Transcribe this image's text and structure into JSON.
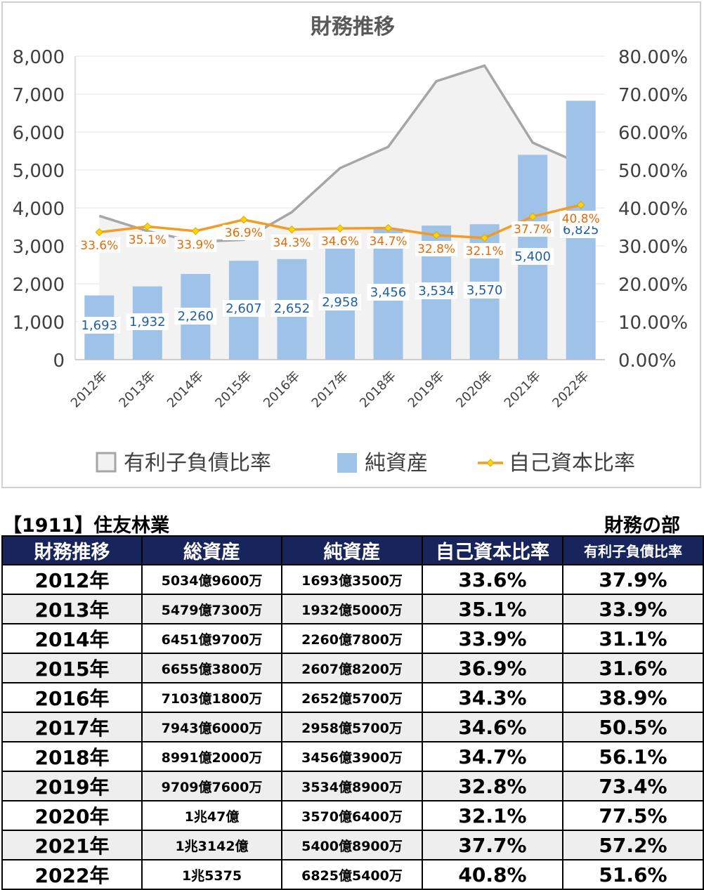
{
  "chart_data": {
    "type": "bar+line+area",
    "title": "財務推移",
    "categories": [
      "2012年",
      "2013年",
      "2014年",
      "2015年",
      "2016年",
      "2017年",
      "2018年",
      "2019年",
      "2020年",
      "2021年",
      "2022年"
    ],
    "left_axis": {
      "ylim": [
        0,
        8000
      ],
      "ticks": [
        "0",
        "1,000",
        "2,000",
        "3,000",
        "4,000",
        "5,000",
        "6,000",
        "7,000",
        "8,000"
      ]
    },
    "right_axis": {
      "ylim": [
        0,
        80
      ],
      "ticks": [
        "0.00%",
        "10.00%",
        "20.00%",
        "30.00%",
        "40.00%",
        "50.00%",
        "60.00%",
        "70.00%",
        "80.00%"
      ]
    },
    "series": [
      {
        "name": "有利子負債比率",
        "type": "area",
        "axis": "right",
        "values": [
          37.9,
          33.9,
          31.1,
          31.6,
          38.9,
          50.5,
          56.1,
          73.4,
          77.5,
          57.2,
          51.6
        ],
        "color": "#a6a6a6"
      },
      {
        "name": "純資産",
        "type": "bar",
        "axis": "left",
        "values": [
          1693,
          1932,
          2260,
          2607,
          2652,
          2958,
          3456,
          3534,
          3570,
          5400,
          6825
        ],
        "labels": [
          "1,693",
          "1,932",
          "2,260",
          "2,607",
          "2,652",
          "2,958",
          "3,456",
          "3,534",
          "3,570",
          "5,400",
          "6,825"
        ],
        "color": "#9fc3e8"
      },
      {
        "name": "自己資本比率",
        "type": "line",
        "axis": "right",
        "values": [
          33.6,
          35.1,
          33.9,
          36.9,
          34.3,
          34.6,
          34.7,
          32.8,
          32.1,
          37.7,
          40.8
        ],
        "labels": [
          "33.6%",
          "35.1%",
          "33.9%",
          "36.9%",
          "34.3%",
          "34.6%",
          "34.7%",
          "32.8%",
          "32.1%",
          "37.7%",
          "40.8%"
        ],
        "color": "#f59a23"
      }
    ],
    "legend": "bottom",
    "grid": true
  },
  "company": "【1911】住友林業",
  "section": "財務の部",
  "table": {
    "headers": [
      "財務推移",
      "総資産",
      "純資産",
      "自己資本比率",
      "有利子負債比率"
    ],
    "rows": [
      [
        "2012年",
        "5034億9600万",
        "1693億3500万",
        "33.6%",
        "37.9%"
      ],
      [
        "2013年",
        "5479億7300万",
        "1932億5000万",
        "35.1%",
        "33.9%"
      ],
      [
        "2014年",
        "6451億9700万",
        "2260億7800万",
        "33.9%",
        "31.1%"
      ],
      [
        "2015年",
        "6655億3800万",
        "2607億8200万",
        "36.9%",
        "31.6%"
      ],
      [
        "2016年",
        "7103億1800万",
        "2652億5700万",
        "34.3%",
        "38.9%"
      ],
      [
        "2017年",
        "7943億6000万",
        "2958億5700万",
        "34.6%",
        "50.5%"
      ],
      [
        "2018年",
        "8991億2000万",
        "3456億3900万",
        "34.7%",
        "56.1%"
      ],
      [
        "2019年",
        "9709億7600万",
        "3534億8900万",
        "32.8%",
        "73.4%"
      ],
      [
        "2020年",
        "1兆47億",
        "3570億6400万",
        "32.1%",
        "77.5%"
      ],
      [
        "2021年",
        "1兆3142億",
        "5400億8900万",
        "37.7%",
        "57.2%"
      ],
      [
        "2022年",
        "1兆5375",
        "6825億5400万",
        "40.8%",
        "51.6%"
      ]
    ]
  }
}
